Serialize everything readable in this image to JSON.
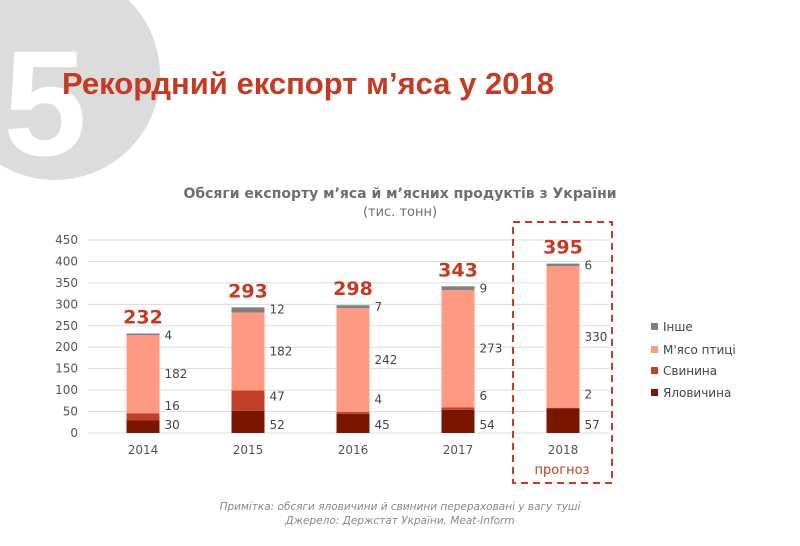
{
  "badge_number": "5",
  "page_title": "Рекордний експорт м’яса у 2018",
  "chart_data": {
    "type": "bar",
    "stacked": true,
    "title": "Обсяги експорту м’яса й м’ясних продуктів з України",
    "subtitle": "(тис. тонн)",
    "categories": [
      "2014",
      "2015",
      "2016",
      "2017",
      "2018"
    ],
    "series": [
      {
        "name": "Яловичина",
        "color": "#7a1500",
        "values": [
          30,
          52,
          45,
          54,
          57
        ]
      },
      {
        "name": "Свинина",
        "color": "#c2402a",
        "values": [
          16,
          47,
          4,
          6,
          2
        ]
      },
      {
        "name": "М'ясо птиці",
        "color": "#ff9a82",
        "values": [
          182,
          182,
          242,
          273,
          330
        ]
      },
      {
        "name": "Інше",
        "color": "#808080",
        "values": [
          4,
          12,
          7,
          9,
          6
        ]
      }
    ],
    "totals": [
      "232",
      "293",
      "298",
      "343",
      "395"
    ],
    "ylim": [
      0,
      450
    ],
    "yticks": [
      "0",
      "50",
      "100",
      "150",
      "200",
      "250",
      "300",
      "350",
      "400",
      "450"
    ],
    "grid": true,
    "legend": "right",
    "forecast_label": "прогноз",
    "accent": "#c23b22"
  },
  "notes": [
    "Примітка: обсяги яловичини й свинини перераховані у вагу туші",
    "Джерело: Держстат України, Meat-Inform"
  ]
}
